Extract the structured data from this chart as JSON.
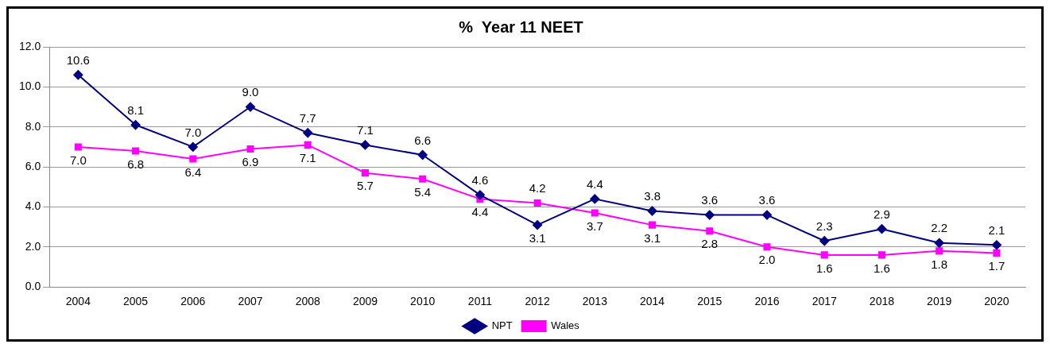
{
  "chart_data": {
    "type": "line",
    "title": "%  Year 11 NEET",
    "categories": [
      "2004",
      "2005",
      "2006",
      "2007",
      "2008",
      "2009",
      "2010",
      "2011",
      "2012",
      "2013",
      "2014",
      "2015",
      "2016",
      "2017",
      "2018",
      "2019",
      "2020"
    ],
    "series": [
      {
        "name": "NPT",
        "color": "#000080",
        "marker": "diamond",
        "values": [
          10.6,
          8.1,
          7.0,
          9.0,
          7.7,
          7.1,
          6.6,
          4.6,
          3.1,
          4.4,
          3.8,
          3.6,
          3.6,
          2.3,
          2.9,
          2.2,
          2.1
        ],
        "value_labels": [
          "10.6",
          "8.1",
          "7.0",
          "9.0",
          "7.7",
          "7.1",
          "6.6",
          "4.6",
          "3.1",
          "4.4",
          "3.8",
          "3.6",
          "3.6",
          "2.3",
          "2.9",
          "2.2",
          "2.1"
        ]
      },
      {
        "name": "Wales",
        "color": "#ff00ff",
        "marker": "square",
        "values": [
          7.0,
          6.8,
          6.4,
          6.9,
          7.1,
          5.7,
          5.4,
          4.4,
          4.2,
          3.7,
          3.1,
          2.8,
          2.0,
          1.6,
          1.6,
          1.8,
          1.7
        ],
        "value_labels": [
          "7.0",
          "6.8",
          "6.4",
          "6.9",
          "7.1",
          "5.7",
          "5.4",
          "4.4",
          "4.2",
          "3.7",
          "3.1",
          "2.8",
          "2.0",
          "1.6",
          "1.6",
          "1.8",
          "1.7"
        ]
      }
    ],
    "ylim": [
      0,
      12
    ],
    "yticks": [
      {
        "value": 0,
        "label": "0.0"
      },
      {
        "value": 2,
        "label": "2.0"
      },
      {
        "value": 4,
        "label": "4.0"
      },
      {
        "value": 6,
        "label": "6.0"
      },
      {
        "value": 8,
        "label": "8.0"
      },
      {
        "value": 10,
        "label": "10.0"
      },
      {
        "value": 12,
        "label": "12.0"
      }
    ],
    "grid": "y",
    "legend": "bottom",
    "line_style": "solid"
  }
}
